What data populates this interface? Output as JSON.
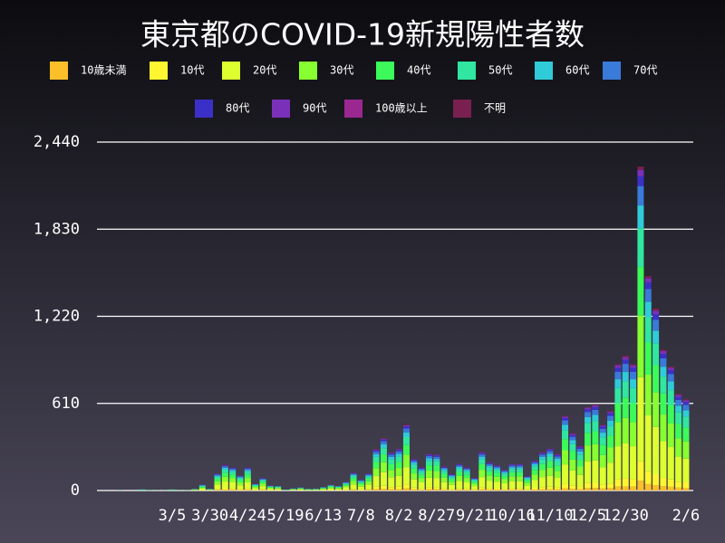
{
  "chart_data": {
    "type": "bar",
    "stacked": true,
    "title": "東京都のCOVID-19新規陽性者数",
    "categories": [
      null,
      null,
      null,
      null,
      null,
      null,
      null,
      null,
      "3/5",
      null,
      null,
      null,
      null,
      "3/30",
      null,
      null,
      null,
      null,
      "4/24",
      null,
      null,
      null,
      null,
      "5/19",
      null,
      null,
      null,
      null,
      "6/13",
      null,
      null,
      null,
      null,
      "7/8",
      null,
      null,
      null,
      null,
      "8/2",
      null,
      null,
      null,
      null,
      "8/27",
      null,
      null,
      null,
      null,
      "9/21",
      null,
      null,
      null,
      null,
      "10/16",
      null,
      null,
      null,
      null,
      "11/10",
      null,
      null,
      null,
      null,
      "12/5",
      null,
      null,
      null,
      null,
      "12/30",
      null,
      null,
      null,
      null,
      null,
      null,
      null,
      "2/6"
    ],
    "ylim": [
      0,
      2440
    ],
    "yticks": [
      0,
      610,
      {
        "value": 1220,
        "label": "1,220"
      },
      {
        "value": 1830,
        "label": "1,830"
      },
      {
        "value": 2440,
        "label": "2,440"
      }
    ],
    "grid": true,
    "series": [
      {
        "name": "10歳未満",
        "color": "#fbbf2a",
        "values": [
          0,
          0,
          0,
          0,
          0,
          0,
          0,
          0,
          0,
          0,
          0,
          0,
          1,
          0,
          4,
          5,
          5,
          3,
          5,
          1,
          3,
          1,
          1,
          0,
          0,
          1,
          0,
          0,
          1,
          1,
          1,
          2,
          4,
          2,
          4,
          9,
          11,
          8,
          9,
          14,
          7,
          5,
          8,
          8,
          5,
          3,
          6,
          5,
          3,
          8,
          6,
          5,
          4,
          6,
          6,
          3,
          6,
          8,
          9,
          8,
          16,
          12,
          9,
          18,
          18,
          14,
          17,
          27,
          28,
          27,
          68,
          45,
          38,
          30,
          26,
          20,
          19
        ]
      },
      {
        "name": "10代",
        "color": "#fff530",
        "values": [
          0,
          0,
          0,
          0,
          0,
          0,
          0,
          0,
          0,
          0,
          0,
          0,
          1,
          1,
          7,
          11,
          10,
          6,
          10,
          3,
          5,
          2,
          2,
          0,
          1,
          1,
          1,
          1,
          1,
          2,
          2,
          4,
          7,
          5,
          7,
          17,
          22,
          16,
          18,
          28,
          13,
          10,
          15,
          15,
          10,
          7,
          11,
          10,
          5,
          16,
          12,
          11,
          9,
          11,
          11,
          6,
          13,
          16,
          18,
          15,
          31,
          24,
          19,
          35,
          36,
          28,
          33,
          53,
          57,
          53,
          136,
          90,
          76,
          59,
          52,
          41,
          38
        ]
      },
      {
        "name": "20代",
        "color": "#ddff30",
        "values": [
          0,
          0,
          0,
          0,
          1,
          1,
          0,
          0,
          1,
          1,
          1,
          3,
          11,
          3,
          31,
          47,
          42,
          28,
          42,
          12,
          23,
          9,
          8,
          1,
          4,
          6,
          3,
          4,
          6,
          11,
          8,
          16,
          32,
          20,
          31,
          75,
          95,
          69,
          76,
          120,
          58,
          42,
          67,
          65,
          44,
          30,
          49,
          42,
          23,
          70,
          51,
          46,
          38,
          48,
          48,
          27,
          54,
          70,
          76,
          66,
          136,
          104,
          81,
          152,
          157,
          120,
          145,
          230,
          245,
          230,
          590,
          391,
          331,
          256,
          226,
          176,
          166
        ]
      },
      {
        "name": "30代",
        "color": "#88ff30",
        "values": [
          0,
          0,
          0,
          0,
          1,
          0,
          1,
          0,
          1,
          0,
          1,
          2,
          7,
          2,
          22,
          34,
          31,
          20,
          31,
          9,
          17,
          7,
          6,
          1,
          3,
          4,
          2,
          2,
          5,
          8,
          6,
          11,
          24,
          14,
          23,
          55,
          70,
          51,
          55,
          88,
          42,
          31,
          49,
          48,
          32,
          22,
          36,
          31,
          17,
          51,
          37,
          34,
          28,
          35,
          35,
          19,
          40,
          51,
          56,
          48,
          99,
          76,
          59,
          111,
          114,
          87,
          106,
          168,
          179,
          168,
          431,
          285,
          242,
          187,
          165,
          128,
          121
        ]
      },
      {
        "name": "40代",
        "color": "#3cfa5a",
        "values": [
          0,
          1,
          0,
          0,
          1,
          1,
          0,
          0,
          2,
          0,
          0,
          2,
          6,
          2,
          18,
          27,
          24,
          16,
          24,
          7,
          13,
          5,
          5,
          1,
          2,
          3,
          2,
          2,
          4,
          6,
          5,
          9,
          19,
          11,
          18,
          44,
          55,
          40,
          44,
          69,
          33,
          24,
          38,
          38,
          26,
          17,
          28,
          24,
          13,
          41,
          29,
          27,
          22,
          28,
          28,
          15,
          31,
          40,
          44,
          38,
          78,
          60,
          47,
          88,
          90,
          69,
          83,
          133,
          142,
          133,
          340,
          225,
          191,
          148,
          130,
          101,
          96
        ]
      },
      {
        "name": "50代",
        "color": "#30e6a0",
        "values": [
          0,
          0,
          0,
          0,
          2,
          0,
          1,
          0,
          2,
          1,
          0,
          2,
          6,
          2,
          14,
          22,
          19,
          13,
          19,
          6,
          10,
          4,
          4,
          1,
          2,
          3,
          2,
          2,
          3,
          5,
          4,
          7,
          15,
          9,
          14,
          35,
          44,
          32,
          35,
          55,
          27,
          19,
          31,
          30,
          20,
          14,
          22,
          20,
          11,
          32,
          24,
          21,
          18,
          22,
          22,
          12,
          25,
          32,
          35,
          31,
          63,
          48,
          37,
          70,
          72,
          55,
          67,
          106,
          113,
          106,
          272,
          180,
          153,
          118,
          104,
          81,
          77
        ]
      },
      {
        "name": "60代",
        "color": "#30cbd8",
        "values": [
          0,
          0,
          0,
          0,
          2,
          1,
          0,
          1,
          1,
          0,
          1,
          1,
          4,
          1,
          8,
          13,
          11,
          7,
          11,
          3,
          6,
          3,
          2,
          1,
          1,
          2,
          1,
          1,
          2,
          3,
          2,
          4,
          9,
          5,
          8,
          20,
          26,
          19,
          20,
          32,
          16,
          11,
          18,
          17,
          12,
          8,
          13,
          11,
          6,
          19,
          14,
          12,
          10,
          13,
          13,
          7,
          15,
          19,
          21,
          18,
          37,
          28,
          22,
          41,
          42,
          32,
          39,
          62,
          66,
          62,
          159,
          105,
          89,
          69,
          61,
          47,
          45
        ]
      },
      {
        "name": "70代",
        "color": "#3a7ad8",
        "values": [
          0,
          0,
          0,
          0,
          1,
          0,
          0,
          0,
          1,
          0,
          0,
          1,
          3,
          1,
          7,
          11,
          10,
          6,
          10,
          3,
          5,
          2,
          2,
          0,
          1,
          1,
          1,
          1,
          1,
          2,
          2,
          4,
          7,
          5,
          7,
          17,
          22,
          16,
          18,
          28,
          13,
          10,
          15,
          15,
          10,
          7,
          11,
          10,
          5,
          16,
          12,
          11,
          9,
          11,
          11,
          6,
          13,
          16,
          18,
          15,
          31,
          24,
          19,
          35,
          36,
          28,
          33,
          53,
          57,
          53,
          136,
          90,
          76,
          59,
          52,
          41,
          38
        ]
      },
      {
        "name": "80代",
        "color": "#3a30c8",
        "values": [
          0,
          0,
          0,
          0,
          0,
          0,
          0,
          0,
          0,
          0,
          0,
          0,
          1,
          1,
          4,
          5,
          5,
          3,
          5,
          1,
          3,
          1,
          0,
          0,
          0,
          1,
          0,
          0,
          1,
          1,
          1,
          2,
          4,
          2,
          4,
          9,
          11,
          8,
          9,
          14,
          7,
          5,
          8,
          8,
          5,
          4,
          6,
          5,
          3,
          8,
          6,
          5,
          4,
          6,
          6,
          3,
          6,
          8,
          9,
          8,
          16,
          12,
          9,
          18,
          18,
          14,
          17,
          27,
          28,
          27,
          68,
          45,
          38,
          30,
          26,
          20,
          19
        ]
      },
      {
        "name": "90代",
        "color": "#7a30b8",
        "values": [
          0,
          0,
          0,
          0,
          0,
          0,
          0,
          0,
          0,
          0,
          0,
          0,
          1,
          0,
          2,
          4,
          3,
          2,
          3,
          1,
          2,
          1,
          0,
          0,
          0,
          0,
          0,
          0,
          0,
          1,
          0,
          1,
          2,
          2,
          2,
          6,
          7,
          5,
          6,
          9,
          4,
          3,
          5,
          5,
          3,
          2,
          4,
          3,
          2,
          5,
          4,
          4,
          3,
          4,
          4,
          2,
          4,
          5,
          6,
          5,
          10,
          8,
          6,
          12,
          12,
          9,
          11,
          18,
          19,
          18,
          45,
          30,
          25,
          20,
          17,
          14,
          13
        ]
      },
      {
        "name": "100歳以上",
        "color": "#9a2890",
        "values": [
          0,
          0,
          0,
          0,
          0,
          0,
          0,
          0,
          0,
          0,
          0,
          0,
          0,
          0,
          0,
          0,
          0,
          0,
          0,
          0,
          0,
          0,
          0,
          0,
          0,
          0,
          0,
          0,
          0,
          0,
          0,
          0,
          0,
          0,
          0,
          0,
          0,
          0,
          0,
          0,
          0,
          0,
          0,
          0,
          0,
          0,
          0,
          0,
          0,
          0,
          0,
          0,
          0,
          0,
          0,
          0,
          0,
          0,
          0,
          0,
          0,
          0,
          0,
          0,
          1,
          0,
          0,
          0,
          1,
          0,
          1,
          1,
          0,
          0,
          0,
          0,
          0
        ]
      },
      {
        "name": "不明",
        "color": "#7a2050",
        "values": [
          0,
          0,
          0,
          0,
          0,
          0,
          0,
          0,
          0,
          0,
          0,
          0,
          0,
          0,
          1,
          2,
          1,
          1,
          1,
          1,
          0,
          1,
          0,
          0,
          0,
          0,
          0,
          0,
          0,
          1,
          0,
          0,
          1,
          0,
          1,
          3,
          3,
          2,
          2,
          5,
          2,
          1,
          2,
          1,
          3,
          2,
          1,
          2,
          0,
          4,
          1,
          2,
          1,
          0,
          2,
          2,
          2,
          4,
          1,
          3,
          5,
          5,
          3,
          4,
          6,
          4,
          5,
          7,
          9,
          7,
          22,
          15,
          15,
          10,
          9,
          7,
          7
        ]
      }
    ]
  }
}
